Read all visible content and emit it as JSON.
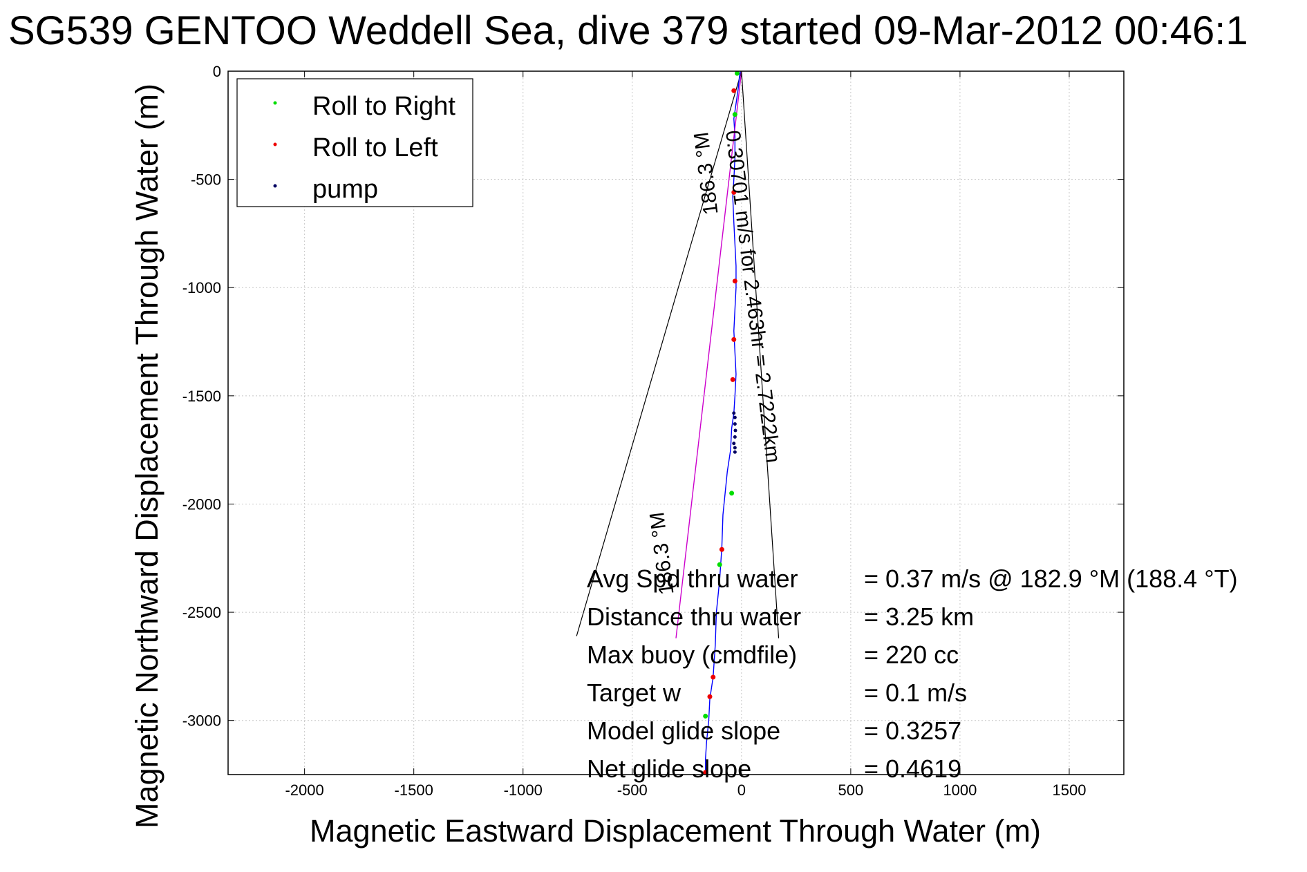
{
  "chart_data": {
    "type": "line",
    "title": "SG539 GENTOO Weddell Sea, dive 379 started 09-Mar-2012 00:46:1",
    "xlabel": "Magnetic Eastward Displacement Through Water (m)",
    "ylabel": "Magnetic Northward Displacement Through Water (m)",
    "xlim": [
      -2350,
      1750
    ],
    "ylim": [
      -3250,
      0
    ],
    "xticks": [
      -2000,
      -1500,
      -1000,
      -500,
      0,
      500,
      1000,
      1500
    ],
    "yticks": [
      0,
      -500,
      -1000,
      -1500,
      -2000,
      -2500,
      -3000
    ],
    "grid": true,
    "legend_position": "top-left",
    "legend": [
      {
        "label": "Roll to Right",
        "color": "#00dd00"
      },
      {
        "label": "Roll to Left",
        "color": "#ee0000"
      },
      {
        "label": "pump",
        "color": "#000060"
      }
    ],
    "series": [
      {
        "color": "#0000ff",
        "x": [
          -5,
          -10,
          -15,
          -25,
          -35,
          -30,
          -30,
          -35,
          -40,
          -35,
          -30,
          -25,
          -25,
          -30,
          -35,
          -30,
          -25,
          -30,
          -35,
          -45,
          -50,
          -65,
          -75,
          -85,
          -90,
          -100,
          -115,
          -120,
          -130,
          -145,
          -150,
          -160,
          -165,
          -165
        ],
        "y": [
          0,
          -30,
          -80,
          -150,
          -220,
          -300,
          -400,
          -500,
          -580,
          -700,
          -800,
          -900,
          -1000,
          -1100,
          -1200,
          -1300,
          -1400,
          -1500,
          -1580,
          -1650,
          -1750,
          -1850,
          -1950,
          -2050,
          -2200,
          -2350,
          -2500,
          -2650,
          -2800,
          -2900,
          -3000,
          -3100,
          -3180,
          -3250
        ]
      },
      {
        "color": "#cc00cc",
        "x": [
          0,
          -300
        ],
        "y": [
          0,
          -2620
        ]
      }
    ],
    "markers": {
      "right": {
        "x": [
          -20,
          -30,
          -45,
          -100,
          -165
        ],
        "y": [
          -10,
          -200,
          -1950,
          -2280,
          -2980
        ]
      },
      "left": {
        "x": [
          -35,
          -35,
          -30,
          -35,
          -40,
          -90,
          -130,
          -145,
          -165
        ],
        "y": [
          -90,
          -560,
          -970,
          -1240,
          -1425,
          -2210,
          -2800,
          -2890,
          -3240
        ]
      },
      "pump": {
        "x": [
          -35,
          -30,
          -30,
          -28,
          -30,
          -35,
          -30,
          -30
        ],
        "y": [
          -1580,
          -1600,
          -1630,
          -1660,
          -1690,
          -1720,
          -1740,
          -1760
        ]
      }
    },
    "cone": {
      "apex": [
        0,
        0
      ],
      "left_end": [
        -755,
        -2610
      ],
      "right_end": [
        170,
        -2620
      ]
    },
    "annotations": [
      {
        "text": "0.30701 m/s for 2.463hr = 2.7222km"
      },
      {
        "text": "186.3 °M"
      },
      {
        "text": "186.3 °M"
      }
    ],
    "info_rows": [
      {
        "label": "Avg Spd thru water",
        "value": "=  0.37 m/s @ 182.9 °M (188.4 °T)"
      },
      {
        "label": "Distance thru water",
        "value": "=  3.25 km"
      },
      {
        "label": "Max buoy (cmdfile)",
        "value": "= 220 cc"
      },
      {
        "label": "Target w",
        "value": "= 0.1 m/s"
      },
      {
        "label": "Model glide slope",
        "value": "= 0.3257"
      },
      {
        "label": "Net glide slope",
        "value": "= 0.4619"
      }
    ]
  }
}
